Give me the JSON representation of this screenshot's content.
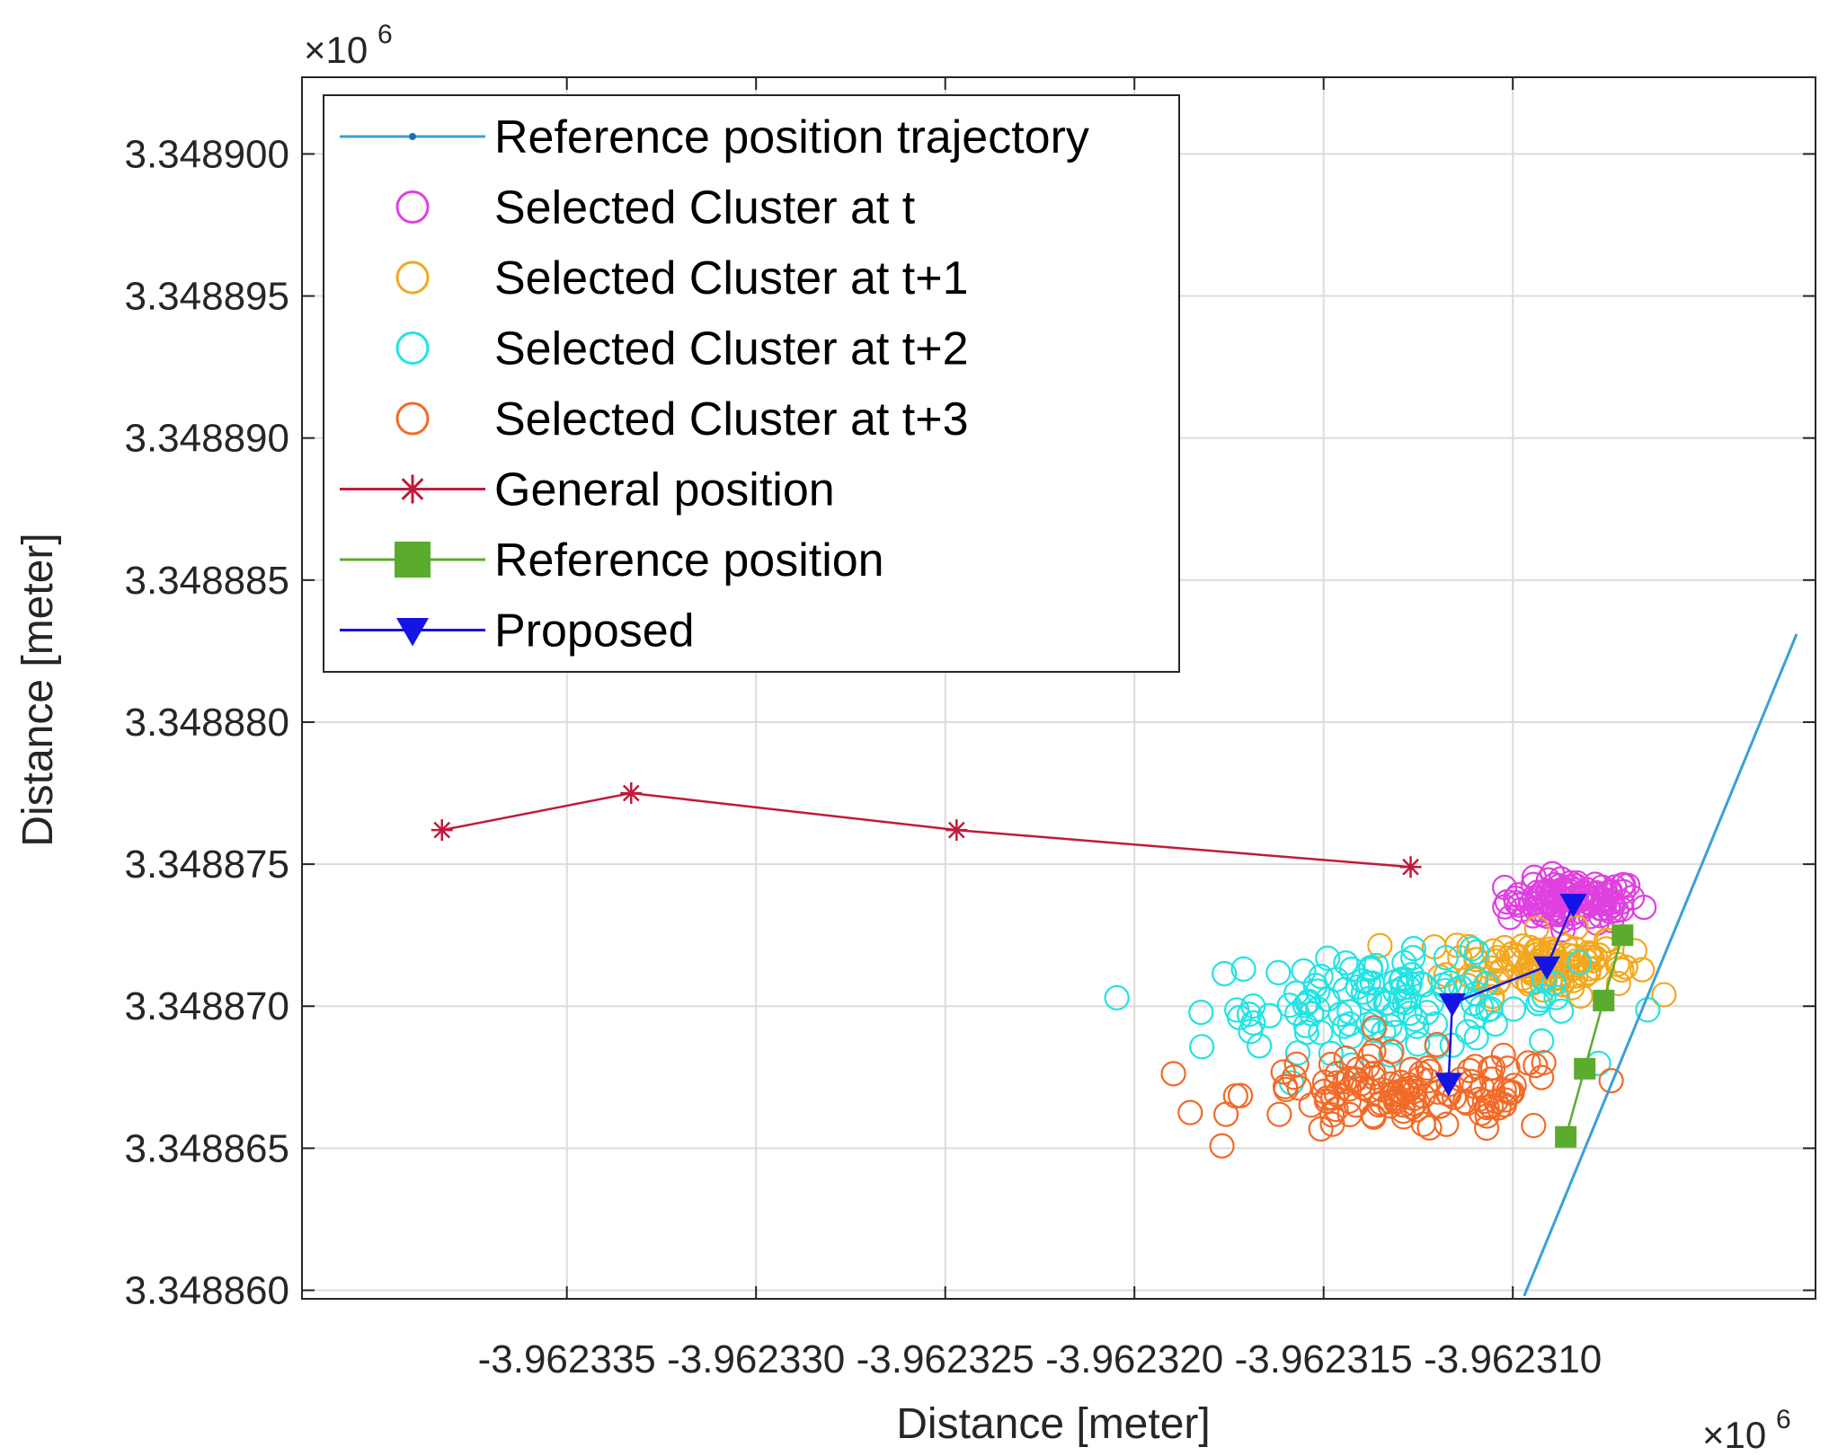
{
  "chart_data": {
    "type": "scatter",
    "xlabel": "Distance [meter]",
    "ylabel": "Distance [meter]",
    "x_multiplier": "×10",
    "y_multiplier": "×10",
    "multiplier_exponent": "6",
    "xlim": [
      -3.962342,
      -3.962302
    ],
    "ylim": [
      3.3488597,
      3.3489027
    ],
    "x_ticks": [
      -3.962335,
      -3.96233,
      -3.962325,
      -3.96232,
      -3.962315,
      -3.96231
    ],
    "x_tick_labels": [
      "-3.962335",
      "-3.962330",
      "-3.962325",
      "-3.962320",
      "-3.962315",
      "-3.962310"
    ],
    "y_ticks": [
      3.34886,
      3.348865,
      3.34887,
      3.348875,
      3.34888,
      3.348885,
      3.34889,
      3.348895,
      3.3489
    ],
    "y_tick_labels": [
      "3.348860",
      "3.348865",
      "3.348870",
      "3.348875",
      "3.348880",
      "3.348885",
      "3.348890",
      "3.348895",
      "3.348900"
    ],
    "grid": true,
    "legend_position": "top-left",
    "series": [
      {
        "name": "Reference position trajectory",
        "kind": "line",
        "color": "#3aa0d8",
        "x": [
          -3.9623097,
          -3.9623025
        ],
        "y": [
          3.3488598,
          3.3488831
        ]
      },
      {
        "name": "Selected Cluster at t",
        "kind": "cluster",
        "color": "#e040e0",
        "center": [
          -3.9623084,
          3.3488737
        ],
        "spread": [
          1.6e-06,
          7e-07
        ],
        "count": 110
      },
      {
        "name": "Selected Cluster at t+1",
        "kind": "cluster",
        "color": "#f2a81e",
        "center": [
          -3.9623093,
          3.3488715
        ],
        "spread": [
          2.2e-06,
          1e-06
        ],
        "count": 110
      },
      {
        "name": "Selected Cluster at t+2",
        "kind": "cluster",
        "color": "#22e3e3",
        "center": [
          -3.9623133,
          3.3488701
        ],
        "spread": [
          4.5e-06,
          1.5e-06
        ],
        "count": 120
      },
      {
        "name": "Selected Cluster at t+3",
        "kind": "cluster",
        "color": "#f26a28",
        "center": [
          -3.9623127,
          3.3488669
        ],
        "spread": [
          4e-06,
          1.3e-06
        ],
        "count": 130
      },
      {
        "name": "General position",
        "kind": "line-star",
        "color": "#c01a3c",
        "x": [
          -3.9623383,
          -3.9623333,
          -3.9623247,
          -3.9623127
        ],
        "y": [
          3.3488762,
          3.3488775,
          3.3488762,
          3.3488749
        ]
      },
      {
        "name": "Reference position",
        "kind": "line-square",
        "color": "#5aab2e",
        "x": [
          -3.9623071,
          -3.9623076,
          -3.9623081,
          -3.9623086
        ],
        "y": [
          3.3488725,
          3.3488702,
          3.3488678,
          3.3488654
        ]
      },
      {
        "name": "Proposed",
        "kind": "line-triangle",
        "color": "#1414e6",
        "x": [
          -3.9623084,
          -3.9623091,
          -3.9623116,
          -3.9623117
        ],
        "y": [
          3.3488736,
          3.3488714,
          3.3488701,
          3.3488673
        ]
      }
    ]
  }
}
